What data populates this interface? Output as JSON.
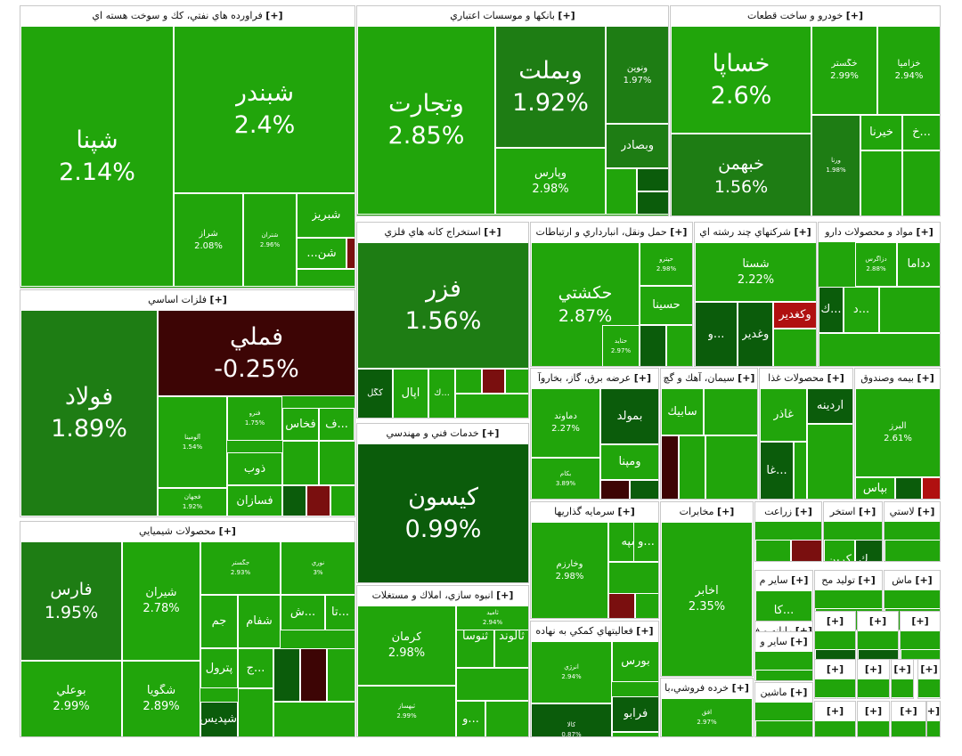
{
  "colors": {
    "dark_green": "#0b5c0b",
    "mid_green": "#1e7d14",
    "green": "#21a50b",
    "light_green": "#2bb50f",
    "red": "#7a0f0f",
    "dark_red": "#3d0505",
    "bright_red": "#b01010"
  },
  "chart_data": {
    "type": "treemap",
    "title": "",
    "sectors": [
      {
        "name": "فراورده هاي نفتي، كك و سوخت هسته اي",
        "stocks": [
          {
            "name": "شپنا",
            "change": "2.14%"
          },
          {
            "name": "شبندر",
            "change": "2.4%"
          },
          {
            "name": "شراز",
            "change": "2.08%"
          },
          {
            "name": "شتران",
            "change": "2.96%"
          },
          {
            "name": "شبريز",
            "change": ""
          },
          {
            "name": "شن...",
            "change": ""
          }
        ]
      },
      {
        "name": "بانكها و موسسات اعتباري",
        "stocks": [
          {
            "name": "وتجارت",
            "change": "2.85%"
          },
          {
            "name": "وبملت",
            "change": "1.92%"
          },
          {
            "name": "ونوين",
            "change": "1.97%"
          },
          {
            "name": "وبصادر",
            "change": ""
          },
          {
            "name": "وپارس",
            "change": "2.98%"
          }
        ]
      },
      {
        "name": "خودرو و ساخت قطعات",
        "stocks": [
          {
            "name": "خساپا",
            "change": "2.6%"
          },
          {
            "name": "خگستر",
            "change": "2.99%"
          },
          {
            "name": "خزاميا",
            "change": "2.94%"
          },
          {
            "name": "خبهمن",
            "change": "1.56%"
          },
          {
            "name": "ورنا",
            "change": "1.98%"
          },
          {
            "name": "خيرنا",
            "change": ""
          },
          {
            "name": "...خ",
            "change": ""
          }
        ]
      },
      {
        "name": "فلزات اساسي",
        "stocks": [
          {
            "name": "فولاد",
            "change": "1.89%"
          },
          {
            "name": "فملي",
            "change": "-0.25%"
          },
          {
            "name": "آلومينا",
            "change": "1.54%"
          },
          {
            "name": "فنرو",
            "change": "1.75%"
          },
          {
            "name": "فخاس",
            "change": ""
          },
          {
            "name": "...ف",
            "change": ""
          },
          {
            "name": "فجهان",
            "change": "1.92%"
          },
          {
            "name": "ذوب",
            "change": ""
          },
          {
            "name": "فسازان",
            "change": ""
          }
        ]
      },
      {
        "name": "استخراج كانه هاي فلزي",
        "stocks": [
          {
            "name": "فزر",
            "change": "1.56%"
          },
          {
            "name": "كگل",
            "change": ""
          },
          {
            "name": "اپال",
            "change": ""
          },
          {
            "name": "...ك",
            "change": ""
          }
        ]
      },
      {
        "name": "خدمات فني و مهندسي",
        "stocks": [
          {
            "name": "كيسون",
            "change": "0.99%"
          }
        ]
      },
      {
        "name": "حمل ونقل، انبارداري و ارتباطات",
        "stocks": [
          {
            "name": "حكشتي",
            "change": "2.87%"
          },
          {
            "name": "حپترو",
            "change": "2.98%"
          },
          {
            "name": "حسينا",
            "change": ""
          },
          {
            "name": "حتايد",
            "change": "2.97%"
          }
        ]
      },
      {
        "name": "شركتهاي چند رشته اي",
        "stocks": [
          {
            "name": "شستا",
            "change": "2.22%"
          },
          {
            "name": "وغدير",
            "change": ""
          },
          {
            "name": "...و",
            "change": ""
          },
          {
            "name": "وكغدير",
            "change": ""
          }
        ]
      },
      {
        "name": "مواد و محصولات دارو",
        "stocks": [
          {
            "name": "دداما",
            "change": ""
          },
          {
            "name": "دزاگرس",
            "change": "2.88%"
          },
          {
            "name": "...د",
            "change": ""
          },
          {
            "name": "...ك",
            "change": ""
          }
        ]
      },
      {
        "name": "عرضه برق، گاز، بخاروآ",
        "stocks": [
          {
            "name": "بمولد",
            "change": ""
          },
          {
            "name": "دماوند",
            "change": "2.27%"
          },
          {
            "name": "ومپنا",
            "change": ""
          },
          {
            "name": "بكام",
            "change": "3.89%"
          }
        ]
      },
      {
        "name": "سيمان، آهك و گچ",
        "stocks": [
          {
            "name": "سابيك",
            "change": ""
          }
        ]
      },
      {
        "name": "محصولات غذا",
        "stocks": [
          {
            "name": "آردينه",
            "change": ""
          },
          {
            "name": "غاذر",
            "change": ""
          },
          {
            "name": "...غا",
            "change": ""
          }
        ]
      },
      {
        "name": "بيمه وصندوق",
        "stocks": [
          {
            "name": "البرز",
            "change": "2.61%"
          },
          {
            "name": "بپاس",
            "change": ""
          }
        ]
      },
      {
        "name": "محصولات شيميايي",
        "stocks": [
          {
            "name": "فارس",
            "change": "1.95%"
          },
          {
            "name": "شيران",
            "change": "2.78%"
          },
          {
            "name": "جگستر",
            "change": "2.93%"
          },
          {
            "name": "نوري",
            "change": "3%"
          },
          {
            "name": "جم",
            "change": ""
          },
          {
            "name": "شفام",
            "change": ""
          },
          {
            "name": "...ش",
            "change": ""
          },
          {
            "name": "...تا",
            "change": ""
          },
          {
            "name": "پترول",
            "change": ""
          },
          {
            "name": "...ج",
            "change": ""
          },
          {
            "name": "بوعلي",
            "change": "2.99%"
          },
          {
            "name": "شگويا",
            "change": "2.89%"
          },
          {
            "name": "شپديس",
            "change": ""
          }
        ]
      },
      {
        "name": "انبوه سازي، املاك و مستغلات",
        "stocks": [
          {
            "name": "كرمان",
            "change": "2.98%"
          },
          {
            "name": "ثنوسا",
            "change": ""
          },
          {
            "name": "ثالوند",
            "change": ""
          },
          {
            "name": "ثاميد",
            "change": "2.94%"
          },
          {
            "name": "ثبهساز",
            "change": "2.99%"
          },
          {
            "name": "...و",
            "change": ""
          }
        ]
      },
      {
        "name": "سرمايه گذاريها",
        "stocks": [
          {
            "name": "وخارزم",
            "change": "2.98%"
          },
          {
            "name": "وسپه",
            "change": ""
          },
          {
            "name": "...و",
            "change": ""
          }
        ]
      },
      {
        "name": "فعاليتهاي كمكي به نهاده",
        "stocks": [
          {
            "name": "انرژي",
            "change": "2.94%"
          },
          {
            "name": "بورس",
            "change": ""
          },
          {
            "name": "كالا",
            "change": "0.87%"
          },
          {
            "name": "فرابو",
            "change": ""
          }
        ]
      },
      {
        "name": "مخابرات",
        "stocks": [
          {
            "name": "اخابر",
            "change": "2.35%"
          }
        ]
      },
      {
        "name": "زراعت",
        "stocks": []
      },
      {
        "name": "استخر",
        "stocks": [
          {
            "name": "كربن",
            "change": ""
          },
          {
            "name": "...ك",
            "change": ""
          }
        ]
      },
      {
        "name": "لاستي",
        "stocks": []
      },
      {
        "name": "ساير م",
        "stocks": [
          {
            "name": "...كا",
            "change": ""
          }
        ]
      },
      {
        "name": "توليد مح",
        "stocks": []
      },
      {
        "name": "ماش",
        "stocks": []
      },
      {
        "name": "رايانه و فعاليت",
        "stocks": []
      },
      {
        "name": "ساير و",
        "stocks": []
      },
      {
        "name": "خرده فروشي،با",
        "stocks": [
          {
            "name": "افق",
            "change": "2.97%"
          }
        ]
      },
      {
        "name": "ماشين",
        "stocks": []
      }
    ]
  },
  "sectors": [
    {
      "title": "فراورده هاي نفتي، كك و سوخت هسته اي"
    },
    {
      "title": "بانكها و موسسات اعتباري"
    },
    {
      "title": "خودرو و ساخت قطعات"
    },
    {
      "title": "فلزات اساسي"
    },
    {
      "title": "استخراج كانه هاي فلزي"
    },
    {
      "title": "خدمات فني و مهندسي"
    },
    {
      "title": "حمل ونقل، انبارداري و ارتباطات"
    },
    {
      "title": "شركتهاي چند رشته اي"
    },
    {
      "title": "مواد و محصولات دارو"
    },
    {
      "title": "عرضه برق، گاز، بخاروآ"
    },
    {
      "title": "سيمان، آهك و گچ"
    },
    {
      "title": "محصولات غذا"
    },
    {
      "title": "بيمه وصندوق"
    },
    {
      "title": "محصولات شيميايي"
    },
    {
      "title": "انبوه سازي، املاك و مستغلات"
    },
    {
      "title": "سرمايه گذاريها"
    },
    {
      "title": "فعاليتهاي كمكي به نهاده"
    },
    {
      "title": "مخابرات"
    },
    {
      "title": "زراعت"
    },
    {
      "title": "استخر"
    },
    {
      "title": "لاستي"
    },
    {
      "title": "ساير م"
    },
    {
      "title": "توليد مح"
    },
    {
      "title": "ماش"
    },
    {
      "title": "رايانه و فعاليت"
    },
    {
      "title": "ساير و"
    },
    {
      "title": "خرده فروشي،با"
    },
    {
      "title": "ماشين"
    },
    {
      "title": ""
    },
    {
      "title": ""
    },
    {
      "title": ""
    },
    {
      "title": ""
    },
    {
      "title": ""
    },
    {
      "title": ""
    },
    {
      "title": ""
    },
    {
      "title": ""
    },
    {
      "title": ""
    },
    {
      "title": ""
    },
    {
      "title": ""
    }
  ],
  "plus_label": "[+]"
}
